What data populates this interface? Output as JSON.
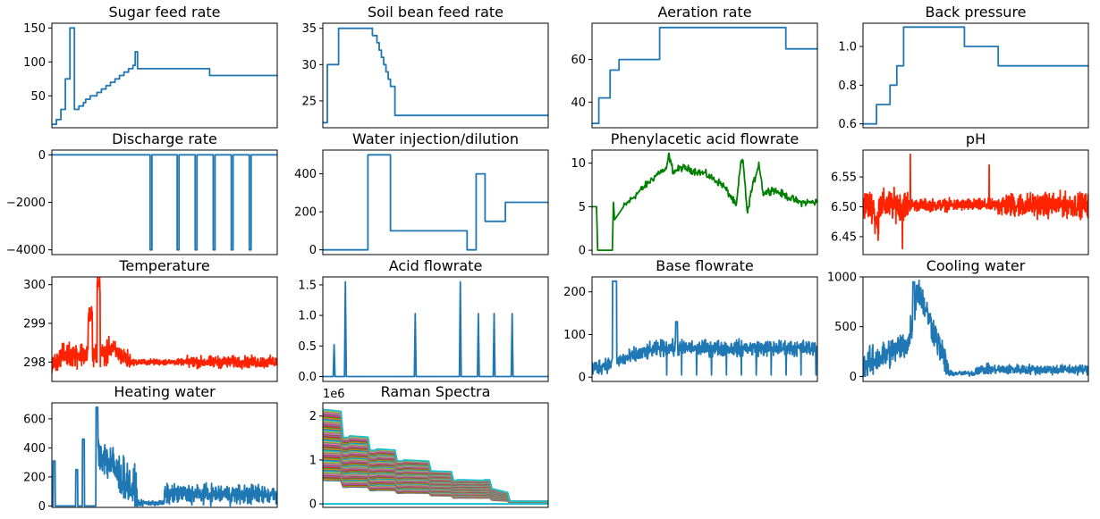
{
  "figure": {
    "background": "#ffffff"
  },
  "chart_data": [
    {
      "id": "sugar",
      "type": "line",
      "title": "Sugar feed rate",
      "color": "#1f77b4",
      "xlim": [
        0,
        100
      ],
      "ylim": [
        3,
        157
      ],
      "yticks": [
        {
          "v": 50,
          "label": "50"
        },
        {
          "v": 100,
          "label": "100"
        },
        {
          "v": 150,
          "label": "150"
        }
      ],
      "series": [
        {
          "step": true,
          "x": [
            0,
            2,
            4,
            6,
            8,
            10,
            12,
            14,
            15,
            17,
            20,
            22,
            24,
            26,
            28,
            30,
            32,
            34,
            36,
            37,
            38,
            40,
            50,
            60,
            70,
            100
          ],
          "y": [
            8,
            15,
            30,
            75,
            150,
            30,
            35,
            40,
            45,
            50,
            55,
            60,
            65,
            70,
            75,
            80,
            85,
            90,
            95,
            115,
            90,
            90,
            90,
            90,
            80,
            80
          ]
        }
      ]
    },
    {
      "id": "soil",
      "type": "line",
      "title": "Soil bean feed rate",
      "color": "#1f77b4",
      "xlim": [
        0,
        100
      ],
      "ylim": [
        21.3,
        35.7
      ],
      "yticks": [
        {
          "v": 25,
          "label": "25"
        },
        {
          "v": 30,
          "label": "30"
        },
        {
          "v": 35,
          "label": "35"
        }
      ],
      "series": [
        {
          "step": true,
          "x": [
            0,
            2,
            7,
            22,
            24,
            25,
            26,
            27,
            28,
            29,
            30,
            32,
            100
          ],
          "y": [
            22,
            30,
            35,
            34,
            33,
            32,
            31,
            30,
            29,
            28,
            27,
            23,
            23
          ]
        }
      ]
    },
    {
      "id": "aeration",
      "type": "line",
      "title": "Aeration rate",
      "color": "#1f77b4",
      "xlim": [
        0,
        100
      ],
      "ylim": [
        28,
        77
      ],
      "yticks": [
        {
          "v": 40,
          "label": "40"
        },
        {
          "v": 60,
          "label": "60"
        }
      ],
      "series": [
        {
          "step": true,
          "x": [
            0,
            3,
            8,
            12,
            30,
            86,
            100
          ],
          "y": [
            30,
            42,
            55,
            60,
            75,
            65,
            65
          ]
        }
      ]
    },
    {
      "id": "backpressure",
      "type": "line",
      "title": "Back pressure",
      "color": "#1f77b4",
      "xlim": [
        0,
        100
      ],
      "ylim": [
        0.58,
        1.12
      ],
      "yticks": [
        {
          "v": 0.6,
          "label": "0.6"
        },
        {
          "v": 0.8,
          "label": "0.8"
        },
        {
          "v": 1.0,
          "label": "1.0"
        }
      ],
      "series": [
        {
          "step": true,
          "x": [
            0,
            6,
            12,
            15,
            18,
            45,
            60,
            100
          ],
          "y": [
            0.6,
            0.7,
            0.8,
            0.9,
            1.1,
            1.0,
            0.9,
            0.9
          ]
        }
      ]
    },
    {
      "id": "discharge",
      "type": "line",
      "title": "Discharge rate",
      "color": "#1f77b4",
      "xlim": [
        0,
        100
      ],
      "ylim": [
        -4200,
        200
      ],
      "yticks": [
        {
          "v": 0,
          "label": "0"
        },
        {
          "v": -2000,
          "label": "−2000"
        },
        {
          "v": -4000,
          "label": "−4000"
        }
      ],
      "series": [
        {
          "spikes": [
            44,
            56,
            64,
            72,
            80,
            88
          ],
          "base": 0,
          "depth": -4000
        }
      ]
    },
    {
      "id": "water",
      "type": "line",
      "title": "Water injection/dilution",
      "color": "#1f77b4",
      "xlim": [
        0,
        100
      ],
      "ylim": [
        -25,
        525
      ],
      "yticks": [
        {
          "v": 0,
          "label": "0"
        },
        {
          "v": 200,
          "label": "200"
        },
        {
          "v": 400,
          "label": "400"
        }
      ],
      "series": [
        {
          "step": true,
          "x": [
            0,
            20,
            30,
            60,
            64,
            68,
            72,
            81,
            100
          ],
          "y": [
            0,
            500,
            100,
            100,
            0,
            400,
            150,
            250,
            250
          ]
        }
      ]
    },
    {
      "id": "paa",
      "type": "line",
      "title": "Phenylacetic acid flowrate",
      "color": "#008000",
      "xlim": [
        0,
        100
      ],
      "ylim": [
        -0.5,
        11.5
      ],
      "yticks": [
        {
          "v": 0,
          "label": "0"
        },
        {
          "v": 5,
          "label": "5"
        },
        {
          "v": 10,
          "label": "10"
        }
      ],
      "series": [
        {
          "generator": "paa"
        }
      ]
    },
    {
      "id": "ph",
      "type": "line",
      "title": "pH",
      "color": "#ff2200",
      "xlim": [
        0,
        100
      ],
      "ylim": [
        6.42,
        6.595
      ],
      "yticks": [
        {
          "v": 6.45,
          "label": "6.45"
        },
        {
          "v": 6.5,
          "label": "6.50"
        },
        {
          "v": 6.55,
          "label": "6.55"
        }
      ],
      "series": [
        {
          "generator": "ph"
        }
      ]
    },
    {
      "id": "temperature",
      "type": "line",
      "title": "Temperature",
      "color": "#ff2200",
      "xlim": [
        0,
        100
      ],
      "ylim": [
        297.5,
        300.2
      ],
      "yticks": [
        {
          "v": 298,
          "label": "298"
        },
        {
          "v": 299,
          "label": "299"
        },
        {
          "v": 300,
          "label": "300"
        }
      ],
      "series": [
        {
          "generator": "temp"
        }
      ]
    },
    {
      "id": "acid",
      "type": "line",
      "title": "Acid flowrate",
      "color": "#1f77b4",
      "xlim": [
        0,
        100
      ],
      "ylim": [
        -0.08,
        1.63
      ],
      "yticks": [
        {
          "v": 0,
          "label": "0.0"
        },
        {
          "v": 0.5,
          "label": "0.5"
        },
        {
          "v": 1.0,
          "label": "1.0"
        },
        {
          "v": 1.5,
          "label": "1.5"
        }
      ],
      "series": [
        {
          "spikeList": [
            [
              5,
              0.52
            ],
            [
              10,
              1.55
            ],
            [
              41,
              1.03
            ],
            [
              61,
              1.55
            ],
            [
              69,
              1.03
            ],
            [
              76,
              1.03
            ],
            [
              84,
              1.03
            ]
          ]
        }
      ]
    },
    {
      "id": "base",
      "type": "line",
      "title": "Base flowrate",
      "color": "#1f77b4",
      "xlim": [
        0,
        100
      ],
      "ylim": [
        -10,
        235
      ],
      "yticks": [
        {
          "v": 0,
          "label": "0"
        },
        {
          "v": 100,
          "label": "100"
        },
        {
          "v": 200,
          "label": "200"
        }
      ],
      "series": [
        {
          "generator": "base"
        }
      ]
    },
    {
      "id": "cooling",
      "type": "line",
      "title": "Cooling water",
      "color": "#1f77b4",
      "xlim": [
        0,
        100
      ],
      "ylim": [
        -50,
        1000
      ],
      "yticks": [
        {
          "v": 0,
          "label": "0"
        },
        {
          "v": 500,
          "label": "500"
        },
        {
          "v": 1000,
          "label": "1000"
        }
      ],
      "series": [
        {
          "generator": "cooling"
        }
      ]
    },
    {
      "id": "heating",
      "type": "line",
      "title": "Heating water",
      "color": "#1f77b4",
      "xlim": [
        0,
        100
      ],
      "ylim": [
        -10,
        710
      ],
      "yticks": [
        {
          "v": 0,
          "label": "0"
        },
        {
          "v": 200,
          "label": "200"
        },
        {
          "v": 400,
          "label": "400"
        },
        {
          "v": 600,
          "label": "600"
        }
      ],
      "series": [
        {
          "generator": "heating"
        }
      ]
    },
    {
      "id": "raman",
      "type": "line",
      "title": "Raman Spectra",
      "offset_label": "1e6",
      "xlim": [
        0,
        100
      ],
      "ylim": [
        -0.08,
        2.3
      ],
      "yticks": [
        {
          "v": 0,
          "label": "0"
        },
        {
          "v": 1,
          "label": "1"
        },
        {
          "v": 2,
          "label": "2"
        }
      ],
      "series": [
        {
          "generator": "raman"
        }
      ]
    }
  ]
}
